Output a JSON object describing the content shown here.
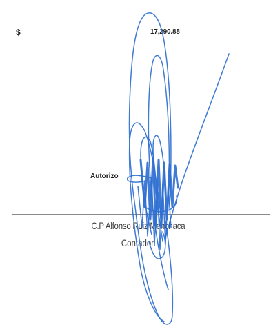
{
  "amount_block": {
    "currency_symbol": "$",
    "amount": "17,290.88"
  },
  "approval": {
    "label": "Autorizo"
  },
  "signer": {
    "name": "C.P Alfonso Ruiz Menchaca",
    "title": "Contador"
  },
  "signature": {
    "ink_color": "#2f6fd0"
  }
}
